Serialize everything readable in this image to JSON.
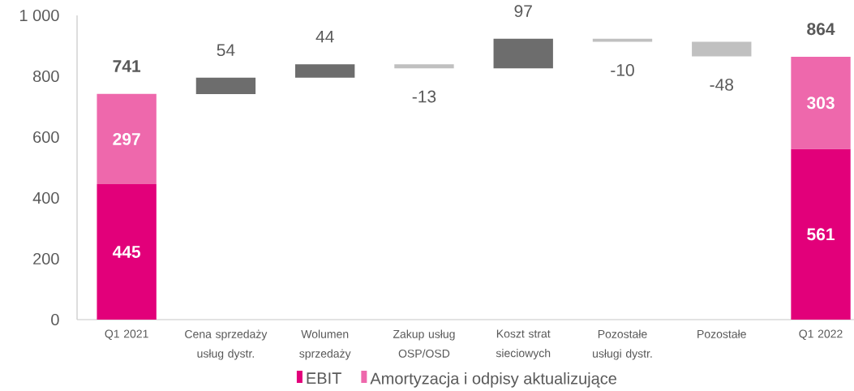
{
  "chart_data": {
    "type": "bar",
    "stacked": true,
    "categories": [
      "Q1 2021",
      "Cena sprzedaży usług dystr.",
      "Wolumen sprzedaży",
      "Zakup usług OSP/OSD",
      "Koszt strat sieciowych",
      "Pozostałe usługi dystr.",
      "Pozostałe",
      "Q1 2022"
    ],
    "series": [
      {
        "name": "EBIT",
        "color": "#e2007a",
        "values": [
          445,
          null,
          null,
          null,
          null,
          null,
          null,
          561
        ]
      },
      {
        "name": "Amortyzacja i odpisy aktualizujące",
        "color": "#ee68ac",
        "values": [
          297,
          null,
          null,
          null,
          null,
          null,
          null,
          303
        ]
      },
      {
        "colors": [
          null,
          "#6d6d6d",
          "#6d6d6d",
          "#c0c0c0",
          "#6d6d6d",
          "#c0c0c0",
          "#c0c0c0",
          null
        ],
        "values": [
          null,
          54,
          44,
          -13,
          97,
          -10,
          -48,
          null
        ],
        "base": [
          null,
          741,
          795,
          839,
          826,
          923,
          913,
          null
        ]
      }
    ],
    "ylim": [
      0,
      1000
    ],
    "yticks": [
      0,
      200,
      400,
      600,
      800,
      {
        "value": 1000,
        "label": "1 000"
      }
    ],
    "data_labels": true,
    "totals": [
      "741",
      null,
      null,
      null,
      null,
      null,
      null,
      "864"
    ],
    "legend": "bottom"
  }
}
